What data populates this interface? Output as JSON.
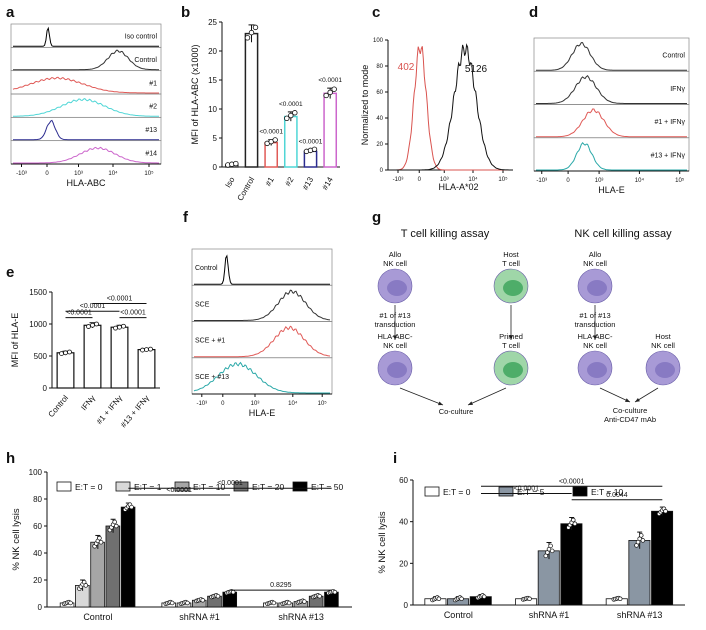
{
  "panel_labels": [
    "a",
    "b",
    "c",
    "d",
    "e",
    "f",
    "g",
    "h",
    "i"
  ],
  "chart_data": [
    {
      "id": "a",
      "type": "histogram-stack",
      "rows": [
        {
          "label": "Iso control",
          "color": "#000000"
        },
        {
          "label": "Control",
          "color": "#333333"
        },
        {
          "label": "#1",
          "color": "#e05a57"
        },
        {
          "label": "#2",
          "color": "#4fd6d6"
        },
        {
          "label": "#13",
          "color": "#2b2b8f"
        },
        {
          "label": "#14",
          "color": "#cc66cc"
        }
      ],
      "xlabel": "HLA-ABC",
      "xticks": [
        "-10³",
        "0",
        "10³",
        "10⁴",
        "10⁵"
      ]
    },
    {
      "id": "b",
      "type": "bar",
      "ylabel": "MFI of HLA-ABC (x1000)",
      "ylim": [
        0,
        25
      ],
      "yticks": [
        "0",
        "5",
        "10",
        "15",
        "20",
        "25"
      ],
      "categories": [
        "Iso",
        "Control",
        "#1",
        "#2",
        "#13",
        "#14"
      ],
      "values": [
        0.3,
        23,
        4.2,
        8.7,
        2.7,
        12.7
      ],
      "errors": [
        0.2,
        1.5,
        0.5,
        0.8,
        0.3,
        0.9
      ],
      "colors": [
        "#444444",
        "#222222",
        "#e05a57",
        "#4fd6d6",
        "#2b2b8f",
        "#cc66cc"
      ],
      "annotations": [
        "",
        "",
        "<0.0001",
        "<0.0001",
        "<0.0001",
        "<0.0001"
      ]
    },
    {
      "id": "c",
      "type": "histogram-overlay",
      "ylabel": "Normalized to mode",
      "xlabel": "HLA-A*02",
      "yticks": [
        "0",
        "20",
        "40",
        "60",
        "80",
        "100"
      ],
      "xticks": [
        "-10³",
        "0",
        "10³",
        "10⁴",
        "10⁵"
      ],
      "labels": [
        {
          "text": "402",
          "color": "#d9534f"
        },
        {
          "text": "5126",
          "color": "#111111"
        }
      ]
    },
    {
      "id": "d",
      "type": "histogram-stack",
      "rows": [
        {
          "label": "Control",
          "color": "#333333"
        },
        {
          "label": "IFNγ",
          "color": "#333333"
        },
        {
          "label": "#1 + IFNγ",
          "color": "#e05a57"
        },
        {
          "label": "#13 + IFNγ",
          "color": "#2aa8a8"
        }
      ],
      "xlabel": "HLA-E",
      "xticks": [
        "-10³",
        "0",
        "10³",
        "10⁴",
        "10⁵"
      ]
    },
    {
      "id": "e",
      "type": "bar",
      "ylabel": "MFI of HLA-E",
      "ylim": [
        0,
        1500
      ],
      "yticks": [
        "0",
        "500",
        "1000",
        "1500"
      ],
      "categories": [
        "Control",
        "IFNγ",
        "#1 + IFNγ",
        "#13 + IFNγ"
      ],
      "values": [
        550,
        980,
        950,
        600
      ],
      "errors": [
        25,
        40,
        30,
        15
      ],
      "comparisons": [
        {
          "from": 0,
          "to": 1,
          "label": "<0.0001"
        },
        {
          "from": 0,
          "to": 2,
          "label": "<0.0001"
        },
        {
          "from": 2,
          "to": 3,
          "label": "<0.0001"
        },
        {
          "from": 1,
          "to": 3,
          "label": "<0.0001"
        }
      ]
    },
    {
      "id": "f",
      "type": "histogram-stack",
      "rows": [
        {
          "label": "Control",
          "color": "#000000"
        },
        {
          "label": "SCE",
          "color": "#333333"
        },
        {
          "label": "SCE + #1",
          "color": "#e05a57"
        },
        {
          "label": "SCE + #13",
          "color": "#2aa8a8"
        }
      ],
      "xlabel": "HLA-E",
      "xticks": [
        "-10³",
        "0",
        "10³",
        "10⁴",
        "10⁵"
      ]
    },
    {
      "id": "h",
      "type": "bar",
      "ylabel": "% NK cell lysis",
      "ylim": [
        0,
        100
      ],
      "yticks": [
        "0",
        "20",
        "40",
        "60",
        "80",
        "100"
      ],
      "groups": [
        "Control",
        "shRNA #1",
        "shRNA #13"
      ],
      "series": [
        {
          "name": "E:T = 0",
          "color": "#ffffff",
          "values": [
            3,
            3,
            3
          ]
        },
        {
          "name": "E:T = 1",
          "color": "#d9d9d9",
          "values": [
            16,
            3,
            3
          ]
        },
        {
          "name": "E:T = 10",
          "color": "#a6a6a6",
          "values": [
            48,
            5,
            4
          ]
        },
        {
          "name": "E:T = 20",
          "color": "#707070",
          "values": [
            60,
            8,
            8
          ]
        },
        {
          "name": "E:T = 50",
          "color": "#000000",
          "values": [
            74,
            11,
            11
          ]
        }
      ],
      "errors": [
        [
          1,
          1,
          1
        ],
        [
          4,
          1,
          1
        ],
        [
          5,
          1,
          1
        ],
        [
          5,
          1,
          1
        ],
        [
          3,
          1,
          1
        ]
      ],
      "comparisons": [
        {
          "from": [
            0,
            4
          ],
          "to": [
            1,
            4
          ],
          "label": "<0.0001"
        },
        {
          "from": [
            0,
            4
          ],
          "to": [
            2,
            4
          ],
          "label": "<0.0001"
        },
        {
          "from": [
            1,
            4
          ],
          "to": [
            2,
            4
          ],
          "label": "0.8295"
        }
      ]
    },
    {
      "id": "i",
      "type": "bar",
      "ylabel": "% NK cell lysis",
      "ylim": [
        0,
        60
      ],
      "yticks": [
        "0",
        "20",
        "40",
        "60"
      ],
      "groups": [
        "Control",
        "shRNA #1",
        "shRNA #13"
      ],
      "series": [
        {
          "name": "E:T = 0",
          "color": "#ffffff",
          "values": [
            3,
            3,
            3
          ]
        },
        {
          "name": "E:T = 5",
          "color": "#8a96a3",
          "values": [
            3,
            26,
            31
          ]
        },
        {
          "name": "E:T = 10",
          "color": "#000000",
          "values": [
            4,
            39,
            45
          ]
        }
      ],
      "errors": [
        [
          1,
          0.5,
          0.5
        ],
        [
          1,
          4,
          4
        ],
        [
          1,
          3,
          2
        ]
      ],
      "comparisons": [
        {
          "from": [
            1,
            2
          ],
          "to": [
            2,
            2
          ],
          "label": "0.0044"
        },
        {
          "from": [
            0,
            2
          ],
          "to": [
            1,
            2
          ],
          "label": "<0.0001"
        },
        {
          "from": [
            0,
            2
          ],
          "to": [
            2,
            2
          ],
          "label": "<0.0001"
        }
      ]
    }
  ],
  "diagram_g": {
    "headers": [
      "T cell killing assay",
      "NK cell killing assay"
    ],
    "cells": {
      "allo1": "Allo\nNK cell",
      "host_t": "Host\nT cell",
      "allo2": "Allo\nNK cell",
      "transduction1": "#1 of #13\ntransduction",
      "transduction2": "#1 of #13\ntransduction",
      "hla_neg1": "HLA-ABC-\nNK cell",
      "primed": "Primed\nT cell",
      "hla_neg2": "HLA-ABC-\nNK cell",
      "host_nk": "Host\nNK cell",
      "coculture1": "Co-culture",
      "coculture2": "Co-culture\nAnti-CD47 mAb"
    },
    "colors": {
      "nk": "#a89ad6",
      "nk_nucleus": "#8274bf",
      "t": "#9fd6a8",
      "t_nucleus": "#3fa65e"
    }
  }
}
